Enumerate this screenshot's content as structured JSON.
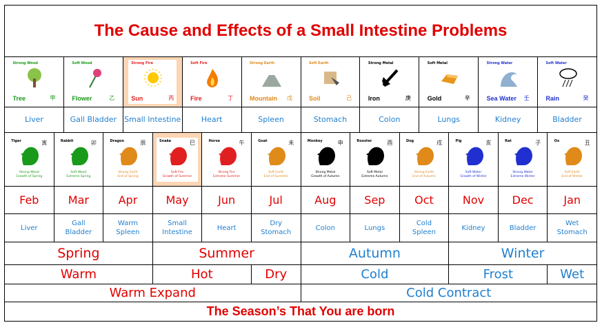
{
  "title": "The Cause and Effects of a Small Intestine Problems",
  "stems": [
    {
      "label": "Strong Wood",
      "name": "Tree",
      "char": "甲",
      "color": "#1a9a1a",
      "icon": "tree-icon",
      "organ": "Liver"
    },
    {
      "label": "Soft Wood",
      "name": "Flower",
      "char": "乙",
      "color": "#1a9a1a",
      "icon": "flower-icon",
      "organ": "Gall Bladder"
    },
    {
      "label": "Strong Fire",
      "name": "Sun",
      "char": "丙",
      "color": "#e02020",
      "icon": "sun-icon",
      "organ": "Small Intestine",
      "highlight": true
    },
    {
      "label": "Soft Fire",
      "name": "Fire",
      "char": "丁",
      "color": "#e02020",
      "icon": "fire-icon",
      "organ": "Heart"
    },
    {
      "label": "Strong Earth",
      "name": "Mountain",
      "char": "戊",
      "color": "#e08a1a",
      "icon": "mountain-icon",
      "organ": "Spleen"
    },
    {
      "label": "Soft Earth",
      "name": "Soil",
      "char": "己",
      "color": "#e08a1a",
      "icon": "soil-icon",
      "organ": "Stomach"
    },
    {
      "label": "Strong Metal",
      "name": "Iron",
      "char": "庚",
      "color": "#000000",
      "icon": "axe-icon",
      "organ": "Colon"
    },
    {
      "label": "Soft Metal",
      "name": "Gold",
      "char": "辛",
      "color": "#000000",
      "icon": "gold-bar-icon",
      "organ": "Lungs"
    },
    {
      "label": "Strong Water",
      "name": "Sea Water",
      "char": "壬",
      "color": "#2030d0",
      "icon": "wave-icon",
      "organ": "Kidney"
    },
    {
      "label": "Soft Water",
      "name": "Rain",
      "char": "癸",
      "color": "#2030d0",
      "icon": "rain-cloud-icon",
      "organ": "Bladder"
    }
  ],
  "branches": [
    {
      "animal": "Tiger",
      "char": "寅",
      "desc1": "Strong Wood",
      "desc2": "Growth of Spring",
      "color": "#1a9a1a",
      "month": "Feb",
      "organ1": "Liver",
      "organ2": ""
    },
    {
      "animal": "Rabbit",
      "char": "卯",
      "desc1": "Soft Wood",
      "desc2": "Extreme Spring",
      "color": "#1a9a1a",
      "month": "Mar",
      "organ1": "Gall",
      "organ2": "Bladder"
    },
    {
      "animal": "Dragon",
      "char": "辰",
      "desc1": "Strong Earth",
      "desc2": "End of Spring",
      "color": "#e08a1a",
      "month": "Apr",
      "organ1": "Warm",
      "organ2": "Spleen"
    },
    {
      "animal": "Snake",
      "char": "巳",
      "desc1": "Soft Fire",
      "desc2": "Growth of Summer",
      "color": "#e02020",
      "month": "May",
      "organ1": "Small",
      "organ2": "Intestine",
      "highlight": true
    },
    {
      "animal": "Horse",
      "char": "午",
      "desc1": "Strong Fire",
      "desc2": "Extreme Summer",
      "color": "#e02020",
      "month": "Jun",
      "organ1": "Heart",
      "organ2": ""
    },
    {
      "animal": "Goat",
      "char": "未",
      "desc1": "Soft Earth",
      "desc2": "End of Summer",
      "color": "#e08a1a",
      "month": "Jul",
      "organ1": "Dry",
      "organ2": "Stomach"
    },
    {
      "animal": "Monkey",
      "char": "申",
      "desc1": "Strong Metal",
      "desc2": "Growth of Autumn",
      "color": "#000000",
      "month": "Aug",
      "organ1": "Colon",
      "organ2": ""
    },
    {
      "animal": "Rooster",
      "char": "酉",
      "desc1": "Soft Metal",
      "desc2": "Extreme Autumn",
      "color": "#000000",
      "month": "Sep",
      "organ1": "Lungs",
      "organ2": ""
    },
    {
      "animal": "Dog",
      "char": "戌",
      "desc1": "Strong Earth",
      "desc2": "End of Autumn",
      "color": "#e08a1a",
      "month": "Oct",
      "organ1": "Cold",
      "organ2": "Spleen"
    },
    {
      "animal": "Pig",
      "char": "亥",
      "desc1": "Soft Water",
      "desc2": "Growth of Winter",
      "color": "#2030d0",
      "month": "Nov",
      "organ1": "Kidney",
      "organ2": ""
    },
    {
      "animal": "Rat",
      "char": "子",
      "desc1": "Strong Water",
      "desc2": "Extreme Winter",
      "color": "#2030d0",
      "month": "Dec",
      "organ1": "Bladder",
      "organ2": ""
    },
    {
      "animal": "Ox",
      "char": "丑",
      "desc1": "Soft Earth",
      "desc2": "End of Winter",
      "color": "#e08a1a",
      "month": "Jan",
      "organ1": "Wet",
      "organ2": "Stomach"
    }
  ],
  "seasons": [
    "Spring",
    "Summer",
    "Autumn",
    "Winter"
  ],
  "climates": [
    "Warm",
    "Hot",
    "Dry",
    "Cold",
    "Frost",
    "Wet"
  ],
  "expansion": [
    "Warm Expand",
    "Cold Contract"
  ],
  "footer": "The Season’s That You are born"
}
